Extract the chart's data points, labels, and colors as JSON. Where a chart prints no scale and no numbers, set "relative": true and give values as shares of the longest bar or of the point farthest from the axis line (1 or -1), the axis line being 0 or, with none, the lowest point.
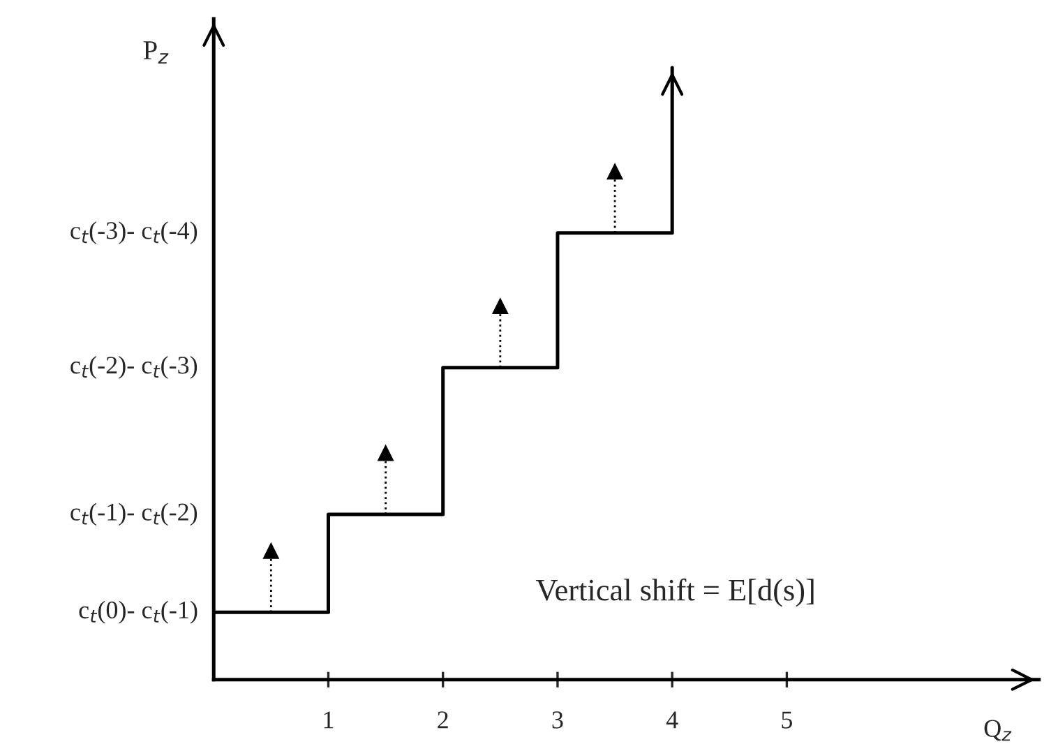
{
  "chart_data": {
    "type": "step",
    "relative": true,
    "xlabel": "Q$_{z}$",
    "ylabel": "P$_{z}$",
    "x": [
      0,
      1,
      2,
      3,
      4
    ],
    "series": [
      {
        "color": "#000000",
        "values": [
          0.11,
          0.27,
          0.51,
          0.73,
          1.0
        ]
      }
    ],
    "xlim": [
      0,
      7.2
    ],
    "xticks": [
      1,
      2,
      3,
      4,
      5
    ],
    "annotations": [
      "c$_{t}$(0)- c$_{t}$(-1)",
      "c$_{t}$(-1)- c$_{t}$(-2)",
      "c$_{t}$(-2)- c$_{t}$(-3)",
      "c$_{t}$(-3)- c$_{t}$(-4)",
      "Vertical shift = E[d(s)]"
    ],
    "grid": false,
    "legend": false
  }
}
